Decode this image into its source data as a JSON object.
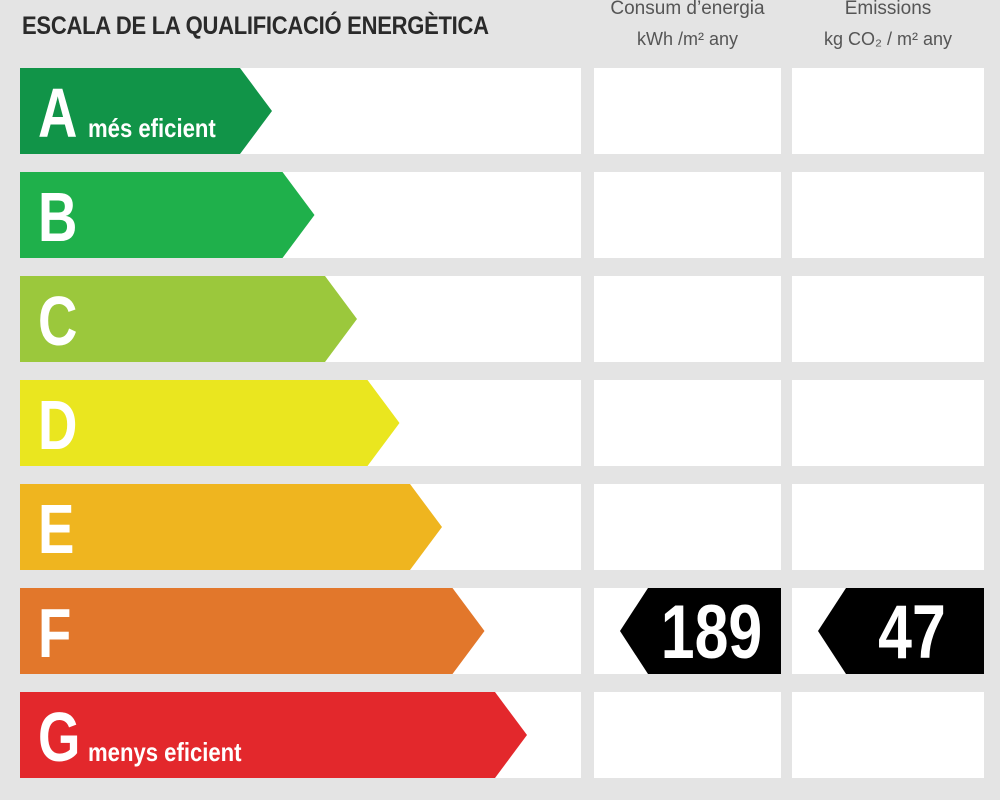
{
  "title": "ESCALA DE LA QUALIFICACIÓ ENERGÈTICA",
  "columns": {
    "consum": {
      "label": "Consum d’energia",
      "unit": "kWh /m² any"
    },
    "emissions": {
      "label": "Emissions",
      "unit": "kg CO₂ / m² any"
    }
  },
  "chart_data": {
    "type": "table",
    "title": "ESCALA DE LA QUALIFICACIÓ ENERGÈTICA",
    "classes": [
      {
        "letter": "A",
        "caption": "més eficient",
        "color": "#119448"
      },
      {
        "letter": "B",
        "caption": "",
        "color": "#1fb04b"
      },
      {
        "letter": "C",
        "caption": "",
        "color": "#9bc83c"
      },
      {
        "letter": "D",
        "caption": "",
        "color": "#eae61f"
      },
      {
        "letter": "E",
        "caption": "",
        "color": "#efb51f"
      },
      {
        "letter": "F",
        "caption": "",
        "color": "#e2772b"
      },
      {
        "letter": "G",
        "caption": "menys eficient",
        "color": "#e3282c"
      }
    ],
    "rating": {
      "class": "F",
      "consum": "189",
      "emissions": "47",
      "marker_color": "#000000"
    }
  }
}
